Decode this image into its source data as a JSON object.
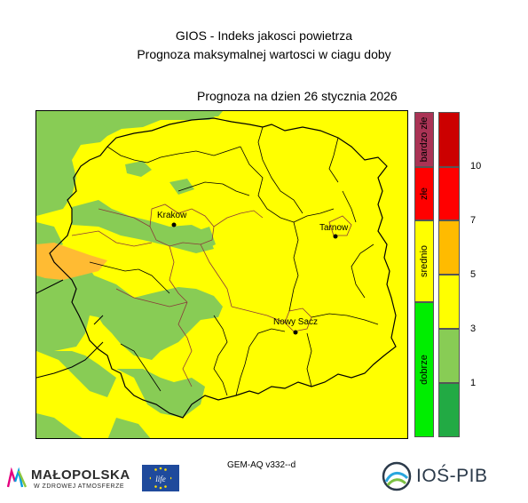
{
  "header": {
    "title": "GIOS - Indeks jakosci powietrza",
    "subtitle": "Prognoza maksymalnej wartosci w ciagu doby",
    "forecast_date": "Prognoza na dzien  26 stycznia 2026"
  },
  "cities": [
    {
      "name": "Krakow"
    },
    {
      "name": "Tarnow"
    },
    {
      "name": "Nowy Sacz"
    }
  ],
  "legend": {
    "categories": [
      {
        "label": "bardzo złe",
        "color": "#aa3355"
      },
      {
        "label": "złe",
        "color": "#ff0000"
      },
      {
        "label": "srednio",
        "color": "#ffff00"
      },
      {
        "label": "dobrze",
        "color": "#00ee00"
      }
    ],
    "index_colors": [
      "#cc0000",
      "#ff0000",
      "#ffbb00",
      "#ffff00",
      "#88cc55",
      "#22aa44"
    ],
    "ticks": [
      "10",
      "7",
      "5",
      "3",
      "1"
    ]
  },
  "map_colors": {
    "yellow": "#ffff00",
    "green": "#88cc55",
    "orange": "#ffbb33"
  },
  "footer": {
    "model": "GEM-AQ v332--d",
    "malopolska_name": "MAŁOPOLSKA",
    "malopolska_tagline": "W ZDROWEJ ATMOSFERZE",
    "eu_life": "life",
    "ios_name": "IOŚ-PIB"
  }
}
